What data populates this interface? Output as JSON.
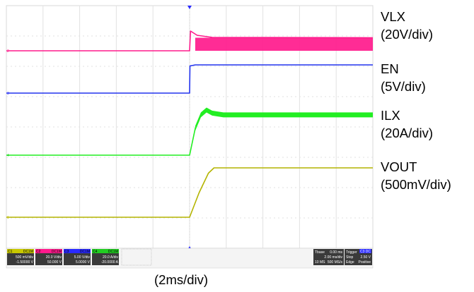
{
  "chart_data": {
    "type": "line",
    "x_unit": "ms",
    "xlim": [
      -9.75,
      9.75
    ],
    "grid": true,
    "divisions": {
      "x": 10,
      "y": 8
    },
    "timebase_label": "(2ms/div)",
    "series": [
      {
        "name": "VLX",
        "scale_label": "(20V/div)",
        "color": "#ff1a8c",
        "points": [
          [
            -9.75,
            0
          ],
          [
            -0.05,
            0
          ],
          [
            0,
            0
          ],
          [
            0.05,
            28
          ],
          [
            0.4,
            22
          ],
          [
            1.2,
            19
          ],
          [
            9.75,
            18.5
          ]
        ],
        "ripple_band_top": 18.5,
        "ripple_band_bottom": 0
      },
      {
        "name": "EN",
        "scale_label": "(5V/div)",
        "color": "#2233ee",
        "points": [
          [
            -9.75,
            0
          ],
          [
            -0.05,
            0
          ],
          [
            0,
            0
          ],
          [
            0.02,
            5.0
          ],
          [
            0.3,
            5.2
          ],
          [
            9.75,
            5.2
          ]
        ]
      },
      {
        "name": "ILX",
        "scale_label": "(20A/div)",
        "color": "#22ee22",
        "points": [
          [
            -9.75,
            0
          ],
          [
            0,
            0
          ],
          [
            0.3,
            22
          ],
          [
            0.6,
            33
          ],
          [
            0.9,
            37
          ],
          [
            1.2,
            34.5
          ],
          [
            1.8,
            33
          ],
          [
            9.75,
            33
          ]
        ],
        "ripple_band": 7
      },
      {
        "name": "VOUT",
        "scale_label": "(500mV/div)",
        "color": "#b4b400",
        "points": [
          [
            -9.75,
            0
          ],
          [
            0,
            0
          ],
          [
            0.5,
            0.37
          ],
          [
            1.0,
            0.67
          ],
          [
            1.3,
            0.75
          ],
          [
            9.75,
            0.75
          ]
        ]
      }
    ]
  },
  "status_bar": {
    "channels": [
      {
        "id": "C1",
        "tag": "DC1M",
        "scale": "500 mV/div",
        "offset": "-1.50000 V",
        "color": "#c8c800"
      },
      {
        "id": "C2",
        "tag": "DC1M",
        "scale": "20.0 V/div",
        "offset": "50.000 V",
        "color": "#ff1a8c"
      },
      {
        "id": "C3",
        "tag": "DC1M",
        "scale": "5.00 V/div",
        "offset": "5.0000 V",
        "color": "#2a2aff"
      },
      {
        "id": "C4",
        "tag": "DC1M",
        "scale": "20.0 A/div",
        "offset": "-20.0000 A",
        "color": "#22cc22"
      }
    ],
    "timebase": {
      "label": "Tbase",
      "delay": "0.00 ms",
      "per_div": "2.00 ms/div",
      "samples": "10 MS",
      "rate": "500 MS/s"
    },
    "trigger": {
      "label": "Trigger",
      "channel": "C3",
      "coupling": "DC",
      "mode": "Stop",
      "level": "2.50 V",
      "type": "Edge",
      "slope": "Positive"
    }
  }
}
